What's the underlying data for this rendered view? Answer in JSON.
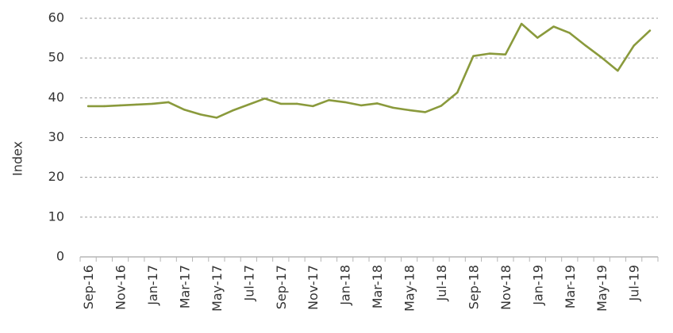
{
  "chart_data": {
    "type": "line",
    "ylabel": "Index",
    "xlabel": "",
    "ylim": [
      0,
      60
    ],
    "yticks": [
      0,
      10,
      20,
      30,
      40,
      50,
      60
    ],
    "grid": "horizontal dashed",
    "legend": "none",
    "line_color": "#8a9a3c",
    "x_tick_labels": [
      "Sep-16",
      "Nov-16",
      "Jan-17",
      "Mar-17",
      "May-17",
      "Jul-17",
      "Sep-17",
      "Nov-17",
      "Jan-18",
      "Mar-18",
      "May-18",
      "Jul-18",
      "Sep-18",
      "Nov-18",
      "Jan-19",
      "Mar-19",
      "May-19",
      "Jul-19"
    ],
    "series": [
      {
        "x": [
          "Sep-16",
          "Oct-16",
          "Nov-16",
          "Dec-16",
          "Jan-17",
          "Feb-17",
          "Mar-17",
          "Apr-17",
          "May-17",
          "Jun-17",
          "Jul-17",
          "Aug-17",
          "Sep-17",
          "Oct-17",
          "Nov-17",
          "Dec-17",
          "Jan-18",
          "Feb-18",
          "Mar-18",
          "Apr-18",
          "May-18",
          "Jun-18",
          "Jul-18",
          "Aug-18",
          "Sep-18",
          "Oct-18",
          "Nov-18",
          "Dec-18",
          "Jan-19",
          "Feb-19",
          "Mar-19",
          "Apr-19",
          "May-19",
          "Jun-19",
          "Jul-19",
          "Aug-19"
        ],
        "values": [
          37.9,
          37.9,
          38.1,
          38.3,
          38.5,
          38.9,
          37.0,
          35.8,
          35.0,
          36.8,
          38.3,
          39.8,
          38.5,
          38.5,
          37.9,
          39.4,
          38.9,
          38.1,
          38.6,
          37.5,
          36.9,
          36.4,
          38.0,
          41.3,
          50.5,
          51.1,
          50.9,
          58.6,
          55.1,
          57.9,
          56.3,
          53.1,
          50.1,
          46.8,
          53.1,
          56.9
        ]
      }
    ]
  }
}
